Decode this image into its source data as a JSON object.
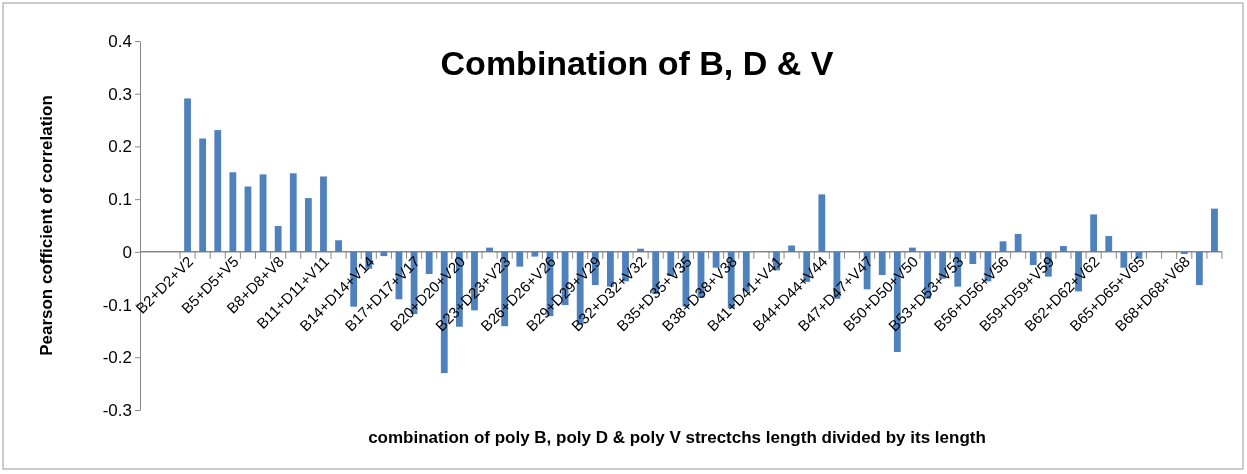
{
  "chart_data": {
    "type": "bar",
    "title": "Combination of B, D & V",
    "xlabel": "combination of poly B, poly D & poly V strectchs length divided by its length",
    "ylabel": "Pearson cofficient of correlation",
    "categories": [
      "B2+D2+V2",
      null,
      null,
      "B5+D5+V5",
      null,
      null,
      "B8+D8+V8",
      null,
      null,
      "B11+D11+V11",
      null,
      null,
      "B14+D14+V14",
      null,
      null,
      "B17+D17+V17",
      null,
      null,
      "B20+D20+V20",
      null,
      null,
      "B23+D23+V23",
      null,
      null,
      "B26+D26+V26",
      null,
      null,
      "B29+D29+V29",
      null,
      null,
      "B32+D32+V32",
      null,
      null,
      "B35+D35+V35",
      null,
      null,
      "B38+D38+V38",
      null,
      null,
      "B41+D41+V41",
      null,
      null,
      "B44+D44+V44",
      null,
      null,
      "B47+D47+V47",
      null,
      null,
      "B50+D50+V50",
      null,
      null,
      "B53+D53+V53",
      null,
      null,
      "B56+D56+V56",
      null,
      null,
      "B59+D59+V59",
      null,
      null,
      "B62+D62+V62",
      null,
      null,
      "B65+D65+V65",
      null,
      null,
      "B68+D68+V68",
      null,
      null
    ],
    "values": [
      0.291,
      0.215,
      0.231,
      0.151,
      0.124,
      0.147,
      0.049,
      0.149,
      0.102,
      0.143,
      0.022,
      -0.104,
      -0.032,
      -0.008,
      -0.09,
      -0.118,
      -0.042,
      -0.23,
      -0.142,
      -0.111,
      0.008,
      -0.141,
      -0.028,
      -0.009,
      -0.122,
      -0.101,
      -0.138,
      -0.063,
      -0.066,
      -0.056,
      0.006,
      -0.08,
      -0.046,
      -0.104,
      -0.087,
      -0.03,
      -0.107,
      -0.075,
      0,
      -0.035,
      0.012,
      -0.057,
      0.109,
      -0.089,
      0,
      -0.071,
      -0.044,
      -0.19,
      0.008,
      -0.089,
      -0.051,
      -0.066,
      -0.023,
      -0.056,
      0.02,
      0.034,
      -0.025,
      -0.047,
      0.011,
      -0.075,
      0.071,
      0.03,
      -0.03,
      -0.013,
      0,
      0,
      -0.004,
      -0.063,
      0.082
    ],
    "color": "#4f81bd",
    "ylim": [
      -0.3,
      0.4
    ],
    "yticks": [
      -0.3,
      -0.2,
      -0.1,
      0,
      0.1,
      0.2,
      0.3,
      0.4
    ],
    "grid": false,
    "legend": false
  }
}
